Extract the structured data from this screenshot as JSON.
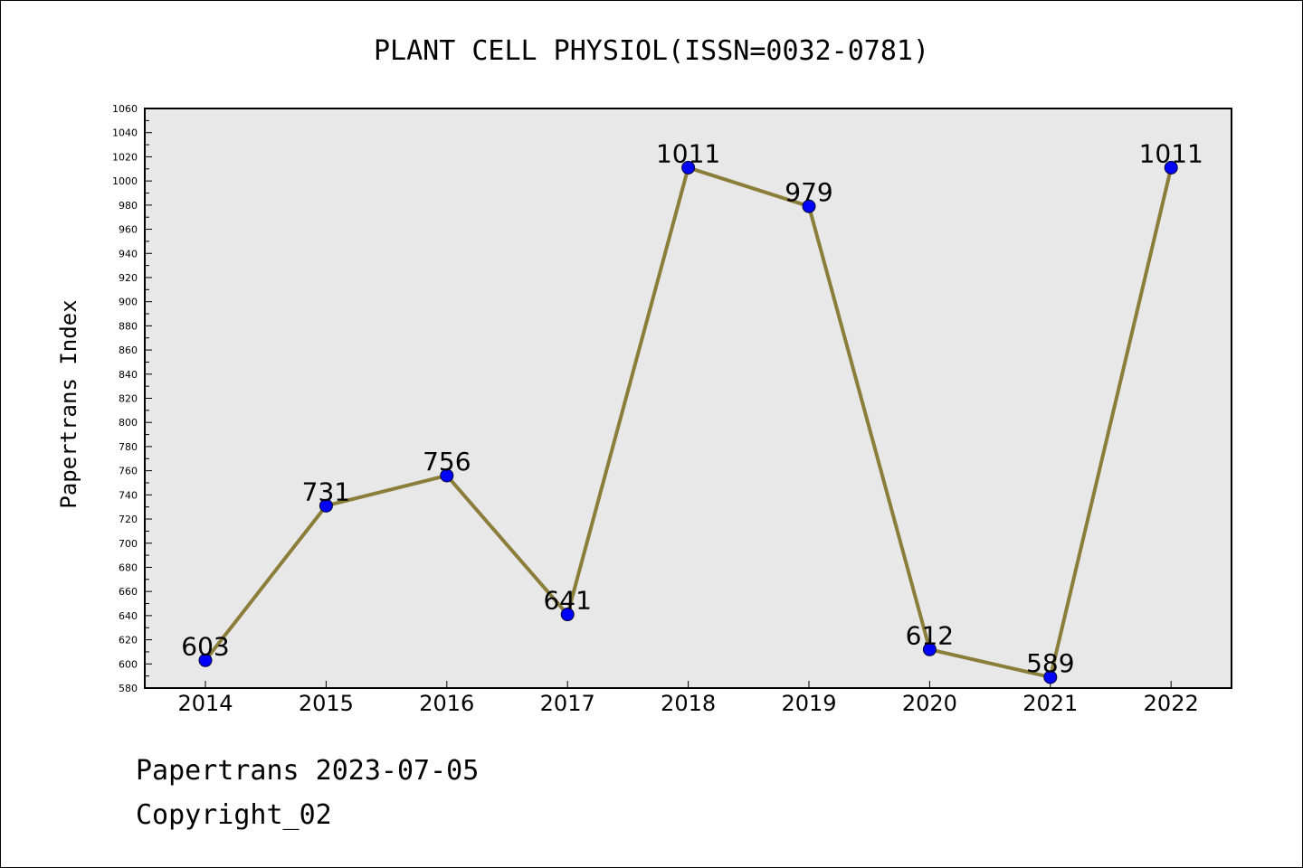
{
  "chart_data": {
    "type": "line",
    "title": "PLANT CELL PHYSIOL(ISSN=0032-0781)",
    "xlabel": "",
    "ylabel": "Papertrans Index",
    "categories": [
      "2014",
      "2015",
      "2016",
      "2017",
      "2018",
      "2019",
      "2020",
      "2021",
      "2022"
    ],
    "values": [
      603,
      731,
      756,
      641,
      1011,
      979,
      612,
      589,
      1011
    ],
    "data_labels": [
      "603",
      "731",
      "756",
      "641",
      "1011",
      "979",
      "612",
      "589",
      "1011"
    ],
    "ylim": [
      580,
      1060
    ],
    "yticks": [
      "580",
      "600",
      "620",
      "640",
      "660",
      "680",
      "700",
      "720",
      "740",
      "760",
      "780",
      "800",
      "820",
      "840",
      "860",
      "880",
      "900",
      "920",
      "940",
      "960",
      "980",
      "1000",
      "1020",
      "1040",
      "1060"
    ],
    "grid": false,
    "line_color": "#8B7D3A",
    "marker_color": "#0000FF",
    "plot_background": "#E8E8E8"
  },
  "footer": {
    "date_text": "Papertrans 2023-07-05",
    "copyright_text": "Copyright_02"
  }
}
